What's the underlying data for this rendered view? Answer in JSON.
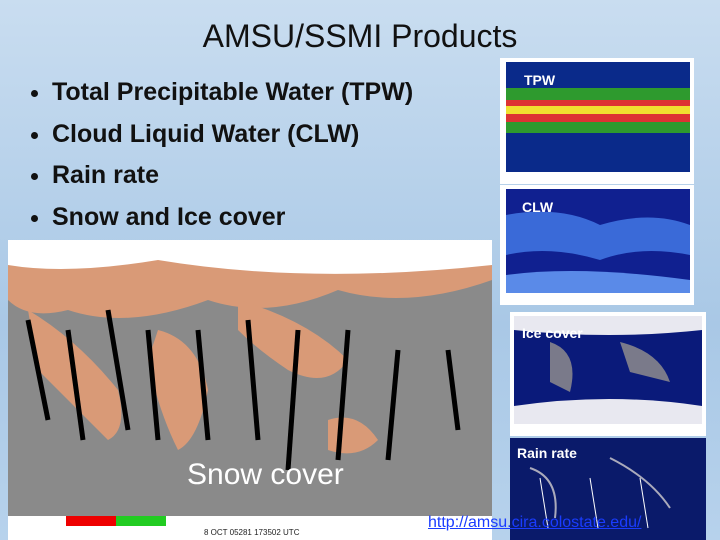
{
  "title": "AMSU/SSMI Products",
  "bullets": [
    "Total Precipitable Water (TPW)",
    "Cloud Liquid Water (CLW)",
    "Rain rate",
    "Snow and Ice cover"
  ],
  "panels": [
    "TPW",
    "CLW",
    "Ice cover",
    "Rain rate"
  ],
  "snow_map": {
    "label": "Snow cover",
    "timestamp": "8 OCT 05281 173502 UTC"
  },
  "link": "http://amsu.cira.colostate.edu/"
}
